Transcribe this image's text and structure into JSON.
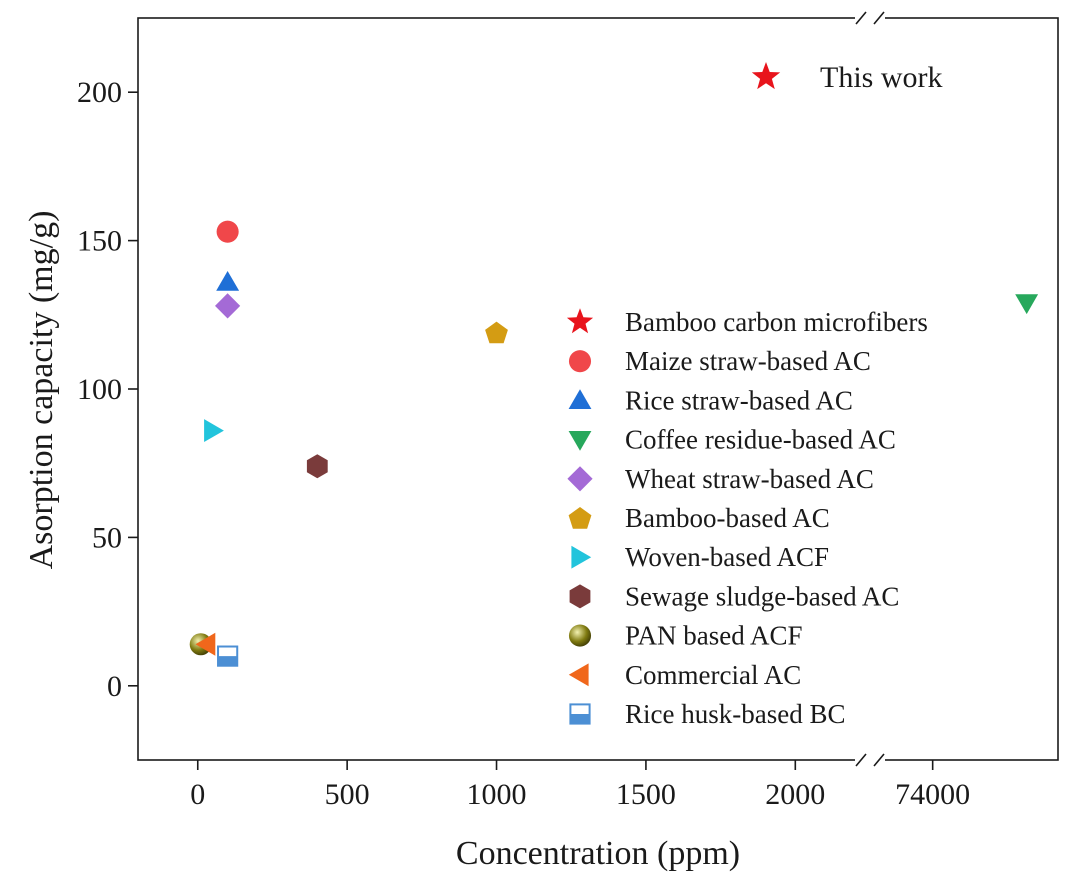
{
  "chart_data": {
    "type": "scatter",
    "title": "",
    "xlabel": "Concentration (ppm)",
    "ylabel": "Asorption capacity (mg/g)",
    "x_axis": {
      "segments": [
        {
          "range": [
            -200,
            2250
          ],
          "ticks": [
            0,
            500,
            1000,
            1500,
            2000
          ]
        },
        {
          "range": [
            73000,
            76000
          ],
          "ticks": [
            74000
          ]
        }
      ],
      "tick_labels": [
        "0",
        "500",
        "1000",
        "1500",
        "2000",
        "74000"
      ],
      "break_between": [
        2250,
        73000
      ]
    },
    "y_axis": {
      "range": [
        -25,
        225
      ],
      "ticks": [
        0,
        50,
        100,
        150,
        200
      ],
      "tick_labels": [
        "0",
        "50",
        "100",
        "150",
        "200"
      ]
    },
    "grid": false,
    "legend_position": "center-right",
    "annotation": {
      "label": "This work",
      "marker": "star",
      "color": "#e8141c"
    },
    "series": [
      {
        "name": "Bamboo carbon microfibers",
        "marker": "star",
        "color": "#e8141c",
        "points": []
      },
      {
        "name": "Maize straw-based AC",
        "marker": "circle",
        "color": "#f0474a",
        "points": [
          [
            100,
            153
          ]
        ]
      },
      {
        "name": "Rice straw-based AC",
        "marker": "triangle-up",
        "color": "#1f6fd6",
        "points": [
          [
            100,
            136
          ]
        ]
      },
      {
        "name": "Coffee residue-based AC",
        "marker": "triangle-down",
        "color": "#27a85c",
        "points": [
          [
            75500,
            129
          ]
        ]
      },
      {
        "name": "Wheat straw-based AC",
        "marker": "diamond",
        "color": "#a46ad6",
        "points": [
          [
            100,
            128
          ]
        ]
      },
      {
        "name": "Bamboo-based AC",
        "marker": "pentagon",
        "color": "#d49c13",
        "points": [
          [
            1000,
            119
          ]
        ]
      },
      {
        "name": "Woven-based ACF",
        "marker": "triangle-right",
        "color": "#22c4dc",
        "points": [
          [
            50,
            86
          ]
        ]
      },
      {
        "name": "Sewage sludge-based AC",
        "marker": "hexagon",
        "color": "#7a3b3b",
        "points": [
          [
            400,
            74
          ]
        ]
      },
      {
        "name": "PAN based ACF",
        "marker": "sphere",
        "color": "#7f7a10",
        "points": [
          [
            10,
            14
          ]
        ]
      },
      {
        "name": "Commercial AC",
        "marker": "triangle-left",
        "color": "#f0671b",
        "points": [
          [
            30,
            14
          ]
        ]
      },
      {
        "name": "Rice husk-based BC",
        "marker": "half-square",
        "color": "#4c8fd4",
        "points": [
          [
            100,
            10
          ]
        ]
      }
    ]
  }
}
